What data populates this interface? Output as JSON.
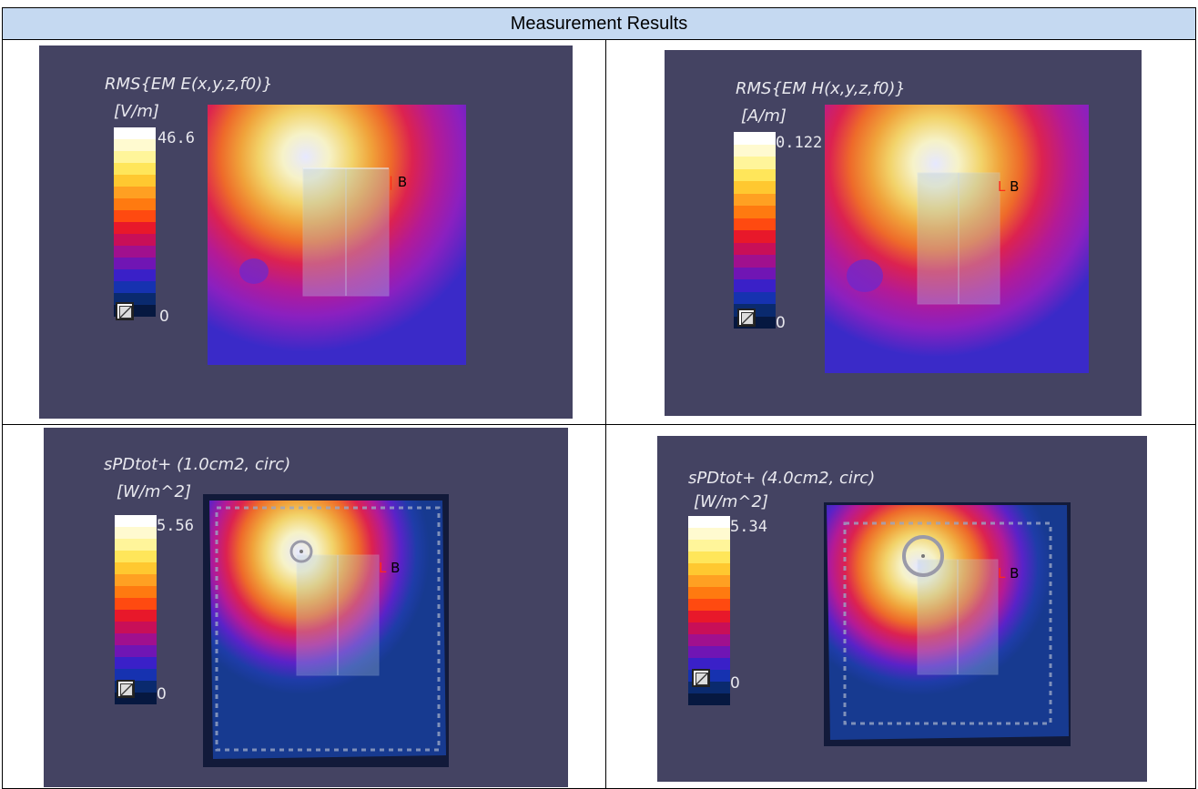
{
  "header": {
    "title": "Measurement Results"
  },
  "colorbar": [
    "#ffffff",
    "#fffad0",
    "#fff59a",
    "#ffe65a",
    "#ffc830",
    "#ffa022",
    "#ff7a10",
    "#ff4a10",
    "#e8182a",
    "#c80f58",
    "#a0108e",
    "#7015b4",
    "#3a20c8",
    "#1632b0",
    "#0a2a6e",
    "#061840"
  ],
  "panels": [
    {
      "title": "RMS{EM E(x,y,z,f0)}",
      "unit": "[V/m]",
      "max": "46.6",
      "min": "0",
      "marker": "B"
    },
    {
      "title": "RMS{EM H(x,y,z,f0)}",
      "unit": "[A/m]",
      "max": "0.122",
      "min": "0",
      "marker": "B"
    },
    {
      "title": "sPDtot+ (1.0cm2, circ)",
      "unit": "[W/m^2]",
      "max": "5.56",
      "min": "0",
      "marker": "B"
    },
    {
      "title": "sPDtot+ (4.0cm2, circ)",
      "unit": "[W/m^2]",
      "max": "5.34",
      "min": "0",
      "marker": "B"
    }
  ]
}
